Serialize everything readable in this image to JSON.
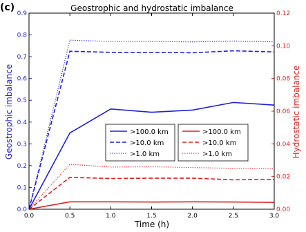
{
  "chart_data": {
    "type": "line",
    "panel_label": "(c)",
    "title": "Geostrophic and hydrostatic imbalance",
    "xlabel": "Time (h)",
    "ylabel_left": "Geostrophic imbalance",
    "ylabel_right": "Hydrostatic imbalance",
    "xlim": [
      0,
      3
    ],
    "ylim_left": [
      0,
      0.9
    ],
    "ylim_right": [
      0,
      0.12
    ],
    "xticks": [
      "0.0",
      "0.5",
      "1.0",
      "1.5",
      "2.0",
      "2.5",
      "3.0"
    ],
    "yticks_left": [
      "0.0",
      "0.1",
      "0.2",
      "0.3",
      "0.4",
      "0.5",
      "0.6",
      "0.7",
      "0.8",
      "0.9"
    ],
    "yticks_right": [
      "0.00",
      "0.02",
      "0.04",
      "0.06",
      "0.08",
      "0.10",
      "0.12"
    ],
    "grid": false,
    "colors": {
      "left_axis": "#1f1fe0",
      "right_axis": "#e01f1f"
    },
    "x": [
      0,
      0.5,
      1.0,
      1.5,
      2.0,
      2.5,
      3.0
    ],
    "series": [
      {
        "name": ">100.0 km",
        "axis": "left",
        "color": "#1f1fe0",
        "style": "solid",
        "values": [
          0,
          0.35,
          0.46,
          0.445,
          0.455,
          0.49,
          0.478
        ]
      },
      {
        "name": ">10.0 km",
        "axis": "left",
        "color": "#1f1fe0",
        "style": "dashed",
        "values": [
          0,
          0.725,
          0.72,
          0.72,
          0.718,
          0.727,
          0.722
        ]
      },
      {
        "name": ">1.0 km",
        "axis": "left",
        "color": "#1f1fe0",
        "style": "dotted",
        "values": [
          0,
          0.776,
          0.77,
          0.77,
          0.768,
          0.772,
          0.768
        ]
      },
      {
        "name": ">100.0 km",
        "axis": "right",
        "color": "#e01f1f",
        "style": "solid",
        "values": [
          0,
          0.0045,
          0.0045,
          0.0044,
          0.0045,
          0.0044,
          0.0042
        ]
      },
      {
        "name": ">10.0 km",
        "axis": "right",
        "color": "#e01f1f",
        "style": "dashed",
        "values": [
          0,
          0.0195,
          0.0188,
          0.019,
          0.019,
          0.018,
          0.0182
        ]
      },
      {
        "name": ">1.0 km",
        "axis": "right",
        "color": "#e01f1f",
        "style": "dotted",
        "values": [
          0,
          0.0275,
          0.0258,
          0.026,
          0.0255,
          0.025,
          0.025
        ]
      }
    ],
    "legends": [
      {
        "position": "center",
        "entries": [
          ">100.0 km",
          ">10.0 km",
          ">1.0 km"
        ],
        "axis": "left"
      },
      {
        "position": "center-right",
        "entries": [
          ">100.0 km",
          ">10.0 km",
          ">1.0 km"
        ],
        "axis": "right"
      }
    ]
  }
}
